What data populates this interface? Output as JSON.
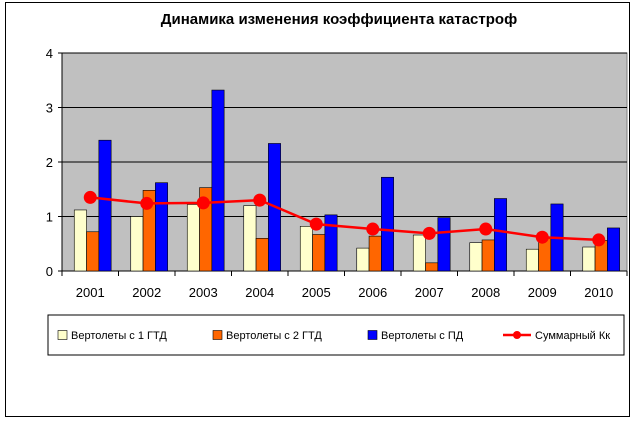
{
  "colors": {
    "plot_background": "#c0c0c0",
    "gridline": "#000000",
    "series_1": "#ffffcc",
    "series_2": "#ff6600",
    "series_3": "#0000ff",
    "series_4": "#ff0000"
  },
  "chart_data": {
    "type": "bar",
    "title": "Динамика изменения коэффициента катастроф",
    "xlabel": "",
    "ylabel": "",
    "ylim": [
      0,
      4
    ],
    "yticks": [
      "0",
      "1",
      "2",
      "3",
      "4"
    ],
    "grid": true,
    "legend_position": "bottom",
    "categories": [
      "2001",
      "2002",
      "2003",
      "2004",
      "2005",
      "2006",
      "2007",
      "2008",
      "2009",
      "2010"
    ],
    "series": [
      {
        "name": "Вертолеты с 1 ГТД",
        "kind": "bar",
        "values": [
          1.12,
          1.0,
          1.22,
          1.2,
          0.82,
          0.42,
          0.66,
          0.52,
          0.4,
          0.44
        ]
      },
      {
        "name": "Вертолеты с 2 ГТД",
        "kind": "bar",
        "values": [
          0.72,
          1.48,
          1.53,
          0.6,
          0.67,
          0.64,
          0.15,
          0.57,
          0.6,
          0.56
        ]
      },
      {
        "name": "Вертолеты с ПД",
        "kind": "bar",
        "values": [
          2.4,
          1.62,
          3.32,
          2.34,
          1.03,
          1.72,
          0.98,
          1.33,
          1.23,
          0.79
        ]
      },
      {
        "name": "Суммарный Кк",
        "kind": "line",
        "values": [
          1.35,
          1.24,
          1.25,
          1.3,
          0.86,
          0.77,
          0.69,
          0.77,
          0.62,
          0.57
        ]
      }
    ]
  }
}
